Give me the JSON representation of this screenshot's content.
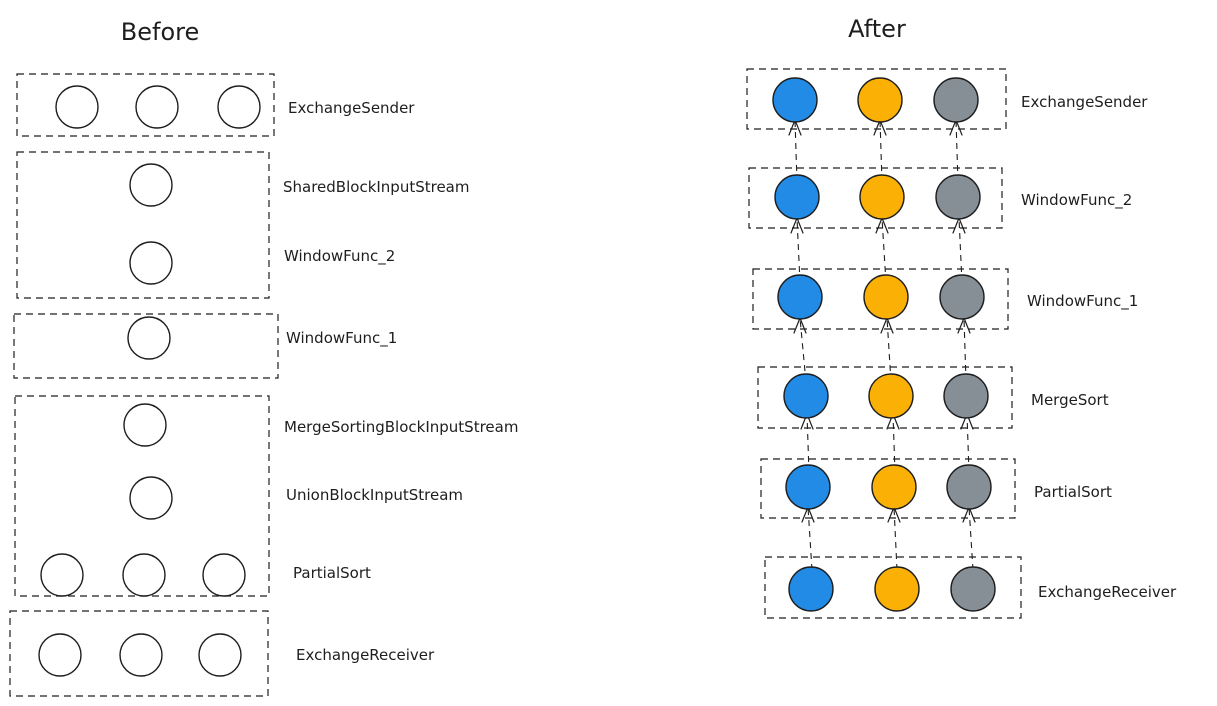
{
  "panels": {
    "before": {
      "title": "Before",
      "stages": [
        {
          "id": "exchange-sender",
          "nodes": [
            {
              "label": "ExchangeSender"
            }
          ]
        },
        {
          "id": "shared-block-input-stream",
          "nodes": [
            {
              "label": "SharedBlockInputStream"
            },
            {
              "label": "WindowFunc_2"
            }
          ]
        },
        {
          "id": "window-func-1",
          "nodes": [
            {
              "label": "WindowFunc_1"
            }
          ]
        },
        {
          "id": "merge-sorting",
          "nodes": [
            {
              "label": "MergeSortingBlockInputStream"
            },
            {
              "label": "UnionBlockInputStream"
            },
            {
              "label": "PartialSort"
            }
          ]
        },
        {
          "id": "exchange-receiver",
          "nodes": [
            {
              "label": "ExchangeReceiver"
            }
          ]
        }
      ]
    },
    "after": {
      "title": "After",
      "stages": [
        {
          "label": "ExchangeSender"
        },
        {
          "label": "WindowFunc_2"
        },
        {
          "label": "WindowFunc_1"
        },
        {
          "label": "MergeSort"
        },
        {
          "label": "PartialSort"
        },
        {
          "label": "ExchangeReceiver"
        }
      ],
      "stream_colors": [
        "#228be6",
        "#fab005",
        "#868e96"
      ]
    }
  },
  "node_color_before": "#ffffff"
}
